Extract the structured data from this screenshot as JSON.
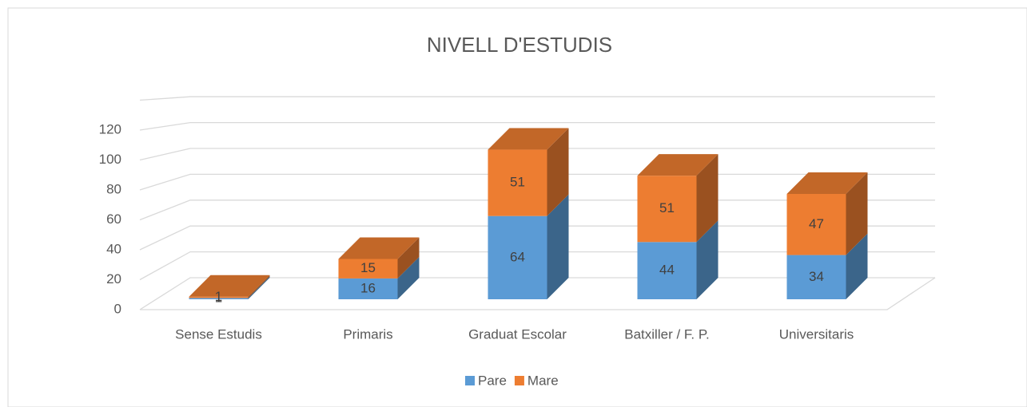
{
  "chart_data": {
    "type": "bar3d_stacked",
    "title": "NIVELL D'ESTUDIS",
    "categories": [
      "Sense Estudis",
      "Primaris",
      "Graduat Escolar",
      "Batxiller / F. P.",
      "Universitaris"
    ],
    "series": [
      {
        "name": "Pare",
        "color": "#5b9bd5",
        "values": [
          1,
          16,
          64,
          44,
          34
        ]
      },
      {
        "name": "Mare",
        "color": "#ed7d31",
        "values": [
          1,
          15,
          51,
          51,
          47
        ]
      }
    ],
    "ylim": [
      0,
      140
    ],
    "yticks": [
      0,
      20,
      40,
      60,
      80,
      100,
      120
    ],
    "grid": true,
    "legend": "bottom"
  }
}
